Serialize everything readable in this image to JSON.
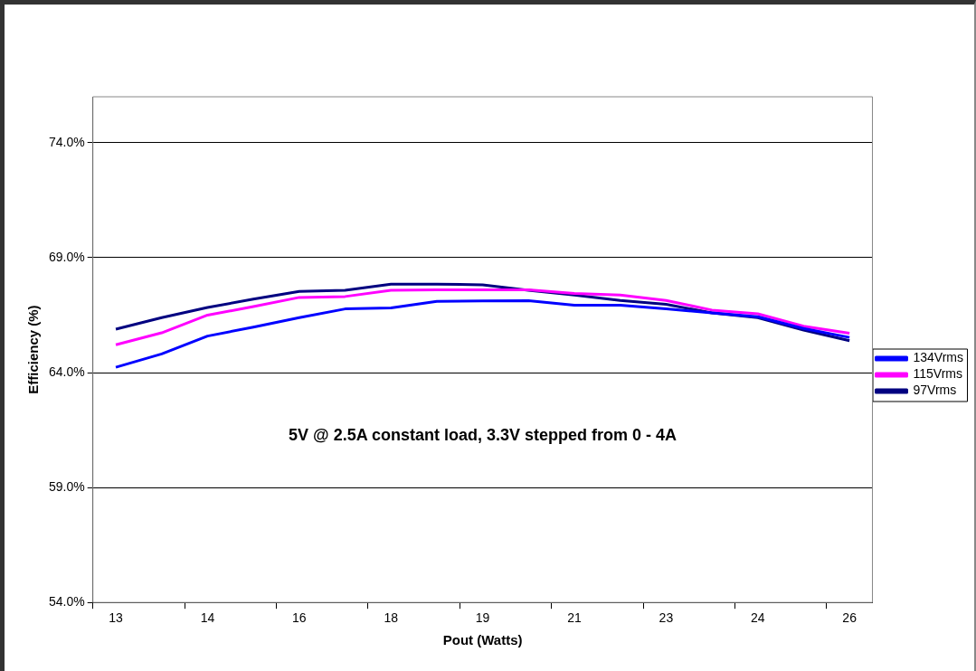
{
  "chart_data": {
    "type": "line",
    "xlabel": "Pout (Watts)",
    "ylabel": "Efficiency (%)",
    "categories": [
      "13",
      null,
      "14",
      null,
      "16",
      null,
      "18",
      null,
      "19",
      null,
      "21",
      null,
      "23",
      null,
      "24",
      null,
      "26"
    ],
    "series": [
      {
        "name": "134Vrms",
        "color": "#0000ff",
        "values": [
          64.23,
          64.81,
          65.59,
          65.98,
          66.39,
          66.77,
          66.81,
          67.1,
          67.12,
          67.13,
          66.93,
          66.93,
          66.77,
          66.6,
          66.43,
          65.92,
          65.53
        ]
      },
      {
        "name": "115Vrms",
        "color": "#ff00ff",
        "values": [
          65.21,
          65.73,
          66.5,
          66.87,
          67.27,
          67.31,
          67.58,
          67.6,
          67.6,
          67.6,
          67.44,
          67.37,
          67.14,
          66.72,
          66.56,
          66.02,
          65.71
        ]
      },
      {
        "name": "97Vrms",
        "color": "#000080",
        "values": [
          65.89,
          66.39,
          66.83,
          67.2,
          67.53,
          67.58,
          67.85,
          67.85,
          67.82,
          67.58,
          67.37,
          67.14,
          66.97,
          66.6,
          66.39,
          65.85,
          65.39
        ]
      }
    ],
    "ylim": [
      54,
      76
    ],
    "yticks": [
      {
        "value": 54,
        "label": "54.0%"
      },
      {
        "value": 59,
        "label": "59.0%"
      },
      {
        "value": 64,
        "label": "64.0%"
      },
      {
        "value": 69,
        "label": "69.0%"
      },
      {
        "value": 74,
        "label": "74.0%"
      }
    ],
    "grid": "y",
    "legend": "right",
    "marker": "none",
    "line_style": "solid",
    "annotations": [
      "5V @ 2.5A constant load, 3.3V stepped from 0 - 4A"
    ]
  }
}
